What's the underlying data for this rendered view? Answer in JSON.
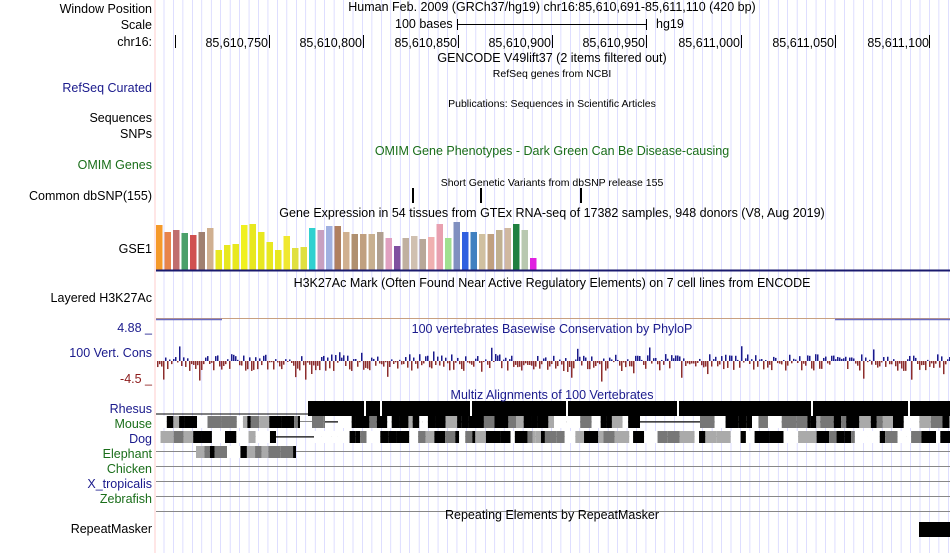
{
  "header": {
    "window_position_label": "Window Position",
    "scale_label": "Scale",
    "chrom_label": "chr16:",
    "assembly_title": "Human Feb. 2009 (GRCh37/hg19)   chr16:85,610,691-85,611,110 (420 bp)",
    "scale_bases": "100 bases",
    "scale_db": "hg19",
    "ticks": [
      "85,610,750",
      "85,610,800",
      "85,610,850",
      "85,610,900",
      "85,610,950",
      "85,611,000",
      "85,611,050",
      "85,611,100"
    ]
  },
  "tracks": {
    "gencode_title": "GENCODE V49lift37 (2 items filtered out)",
    "refseq_title": "RefSeq genes from NCBI",
    "refseq_label": "RefSeq Curated",
    "publications_title": "Publications: Sequences in Scientific Articles",
    "sequences_label": "Sequences",
    "snps_label": "SNPs",
    "omim_label": "OMIM Genes",
    "omim_title": "OMIM Gene Phenotypes - Dark Green Can Be Disease-causing",
    "dbsnp_title": "Short Genetic Variants from dbSNP release 155",
    "dbsnp_label": "Common dbSNP(155)",
    "gtex_title": "Gene Expression in 54 tissues from GTEx RNA-seq of 17382 samples, 948 donors (V8, Aug 2019)",
    "gtex_label": "GSE1",
    "h3k_label": "Layered H3K27Ac",
    "h3k_title": "H3K27Ac Mark (Often Found Near Active Regulatory Elements) on 7 cell lines from ENCODE",
    "cons_max": "4.88 _",
    "cons_label": "100 Vert. Cons",
    "cons_min": "-4.5 _",
    "cons_title": "100 vertebrates Basewise Conservation by PhyloP",
    "multiz_title": "Multiz Alignments of 100 Vertebrates",
    "species": [
      "Rhesus",
      "Mouse",
      "Dog",
      "Elephant",
      "Chicken",
      "X_tropicalis",
      "Zebrafish"
    ],
    "repeat_label": "RepeatMasker",
    "repeat_title": "Repeating Elements by RepeatMasker"
  },
  "colors": {
    "label_blue": "#1a1a8c",
    "omim_green": "#1a6e1a",
    "cons_red": "#8c1a1a",
    "grid": "#c8c8ff",
    "cons_pos": "#1a1a8c",
    "cons_neg": "#8c2d2d"
  },
  "chart_data": {
    "type": "bar",
    "title": "Gene Expression in 54 tissues from GTEx RNA-seq of 17382 samples, 948 donors (V8, Aug 2019)",
    "values": [
      45,
      38,
      40,
      37,
      35,
      38,
      42,
      20,
      25,
      26,
      45,
      46,
      38,
      28,
      20,
      34,
      22,
      23,
      42,
      40,
      44,
      44,
      38,
      36,
      36,
      36,
      38,
      32,
      24,
      32,
      34,
      31,
      33,
      46,
      32,
      48,
      38,
      38,
      36,
      36,
      40,
      42,
      46,
      40,
      12
    ],
    "colors": [
      "#f59a2a",
      "#e8844a",
      "#c06e6e",
      "#4aa06a",
      "#d05050",
      "#a08070",
      "#d0b090",
      "#e8e820",
      "#e8e820",
      "#e8e820",
      "#f0f020",
      "#e8e820",
      "#e8e820",
      "#e8e820",
      "#e8e820",
      "#f0e830",
      "#e0e040",
      "#e0e040",
      "#30d0d0",
      "#c8a0c0",
      "#a0b0e0",
      "#b08060",
      "#d0b090",
      "#b09070",
      "#c0a080",
      "#c8b090",
      "#b0a090",
      "#e0a0c0",
      "#8050a0",
      "#c0b0a0",
      "#d0c0b0",
      "#b8a898",
      "#f0b0b0",
      "#e8a0b0",
      "#a0e090",
      "#8090c0",
      "#3060e0",
      "#4080c0",
      "#d0c0a0",
      "#c0a080",
      "#c0b090",
      "#d0b8a0",
      "#208040",
      "#b8c8b0",
      "#e020e0"
    ]
  }
}
